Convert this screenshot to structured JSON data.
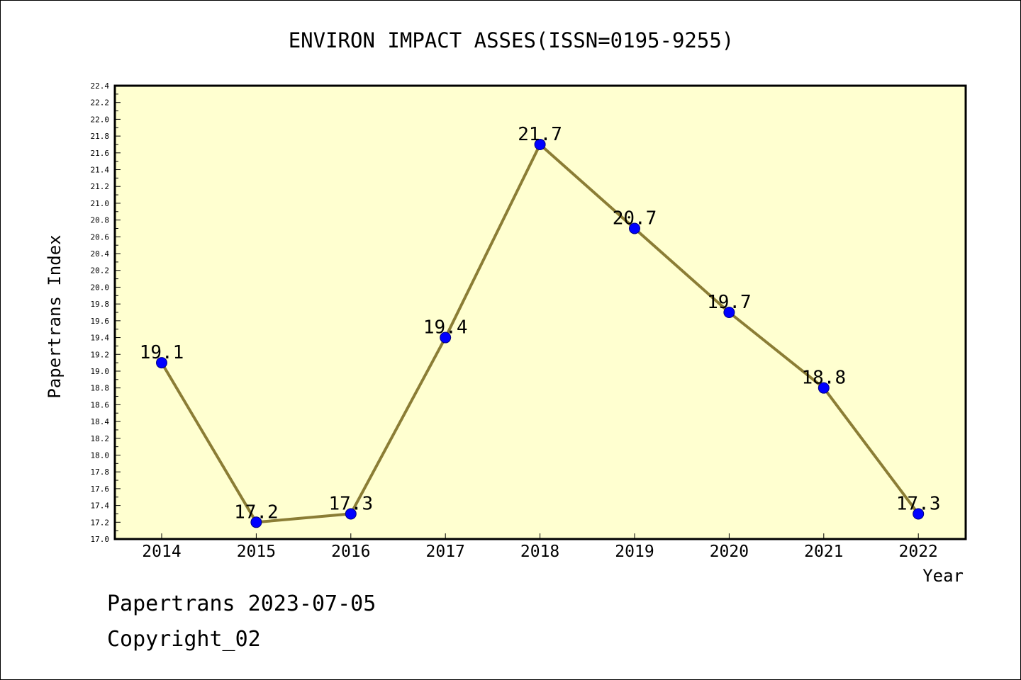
{
  "chart_data": {
    "type": "line",
    "title": "ENVIRON IMPACT ASSES(ISSN=0195-9255)",
    "xlabel": "Year",
    "ylabel": "Papertrans Index",
    "categories": [
      "2014",
      "2015",
      "2016",
      "2017",
      "2018",
      "2019",
      "2020",
      "2021",
      "2022"
    ],
    "series": [
      {
        "values": [
          19.1,
          17.2,
          17.3,
          19.4,
          21.7,
          20.7,
          19.7,
          18.8,
          17.3
        ]
      }
    ],
    "data_labels": [
      "19.1",
      "17.2",
      "17.3",
      "19.4",
      "21.7",
      "20.7",
      "19.7",
      "18.8",
      "17.3"
    ],
    "ylim": [
      17.0,
      22.4
    ],
    "y_major_step": 0.2,
    "y_minor_step": 0.1,
    "yticks": [
      "17.0",
      "17.2",
      "17.4",
      "17.6",
      "17.8",
      "18.0",
      "18.2",
      "18.4",
      "18.6",
      "18.8",
      "19.0",
      "19.2",
      "19.4",
      "19.6",
      "19.8",
      "20.0",
      "20.2",
      "20.4",
      "20.6",
      "20.8",
      "21.0",
      "21.2",
      "21.4",
      "21.6",
      "21.8",
      "22.0",
      "22.2",
      "22.4"
    ],
    "grid": false,
    "legend": "none",
    "colors": {
      "plot_background": "#FFFFD0",
      "line": "#8B7D35",
      "marker_fill": "#0000FF",
      "marker_edge": "#000080"
    }
  },
  "footer": {
    "line1": "Papertrans 2023-07-05",
    "line2": "Copyright_02"
  }
}
